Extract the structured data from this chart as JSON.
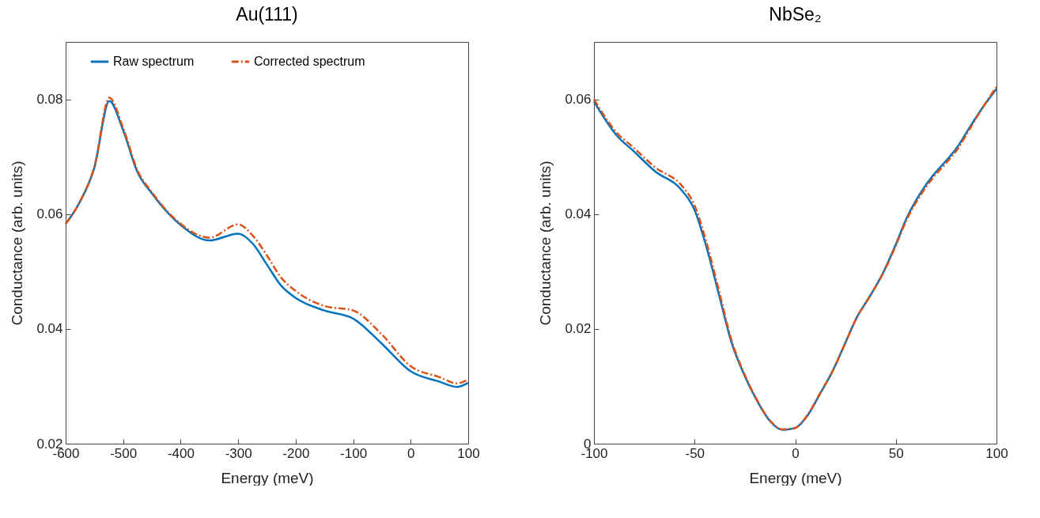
{
  "chart_data": [
    {
      "type": "line",
      "title": "Au(111)",
      "xlabel": "Energy (meV)",
      "ylabel": "Conductance (arb. units)",
      "xlim": [
        -600,
        100
      ],
      "xticks": [
        -600,
        -500,
        -400,
        -300,
        -200,
        -100,
        0,
        100
      ],
      "ylim": [
        0.02,
        0.09
      ],
      "yticks": [
        0.02,
        0.04,
        0.06,
        0.08
      ],
      "legend": "top",
      "grid": false,
      "x": [
        -600,
        -577,
        -550,
        -524,
        -500,
        -475,
        -450,
        -400,
        -350,
        -300,
        -275,
        -250,
        -225,
        -200,
        -150,
        -100,
        -50,
        0,
        50,
        80,
        100
      ],
      "series": [
        {
          "name": "Raw spectrum",
          "color": "#0072bd",
          "line_style": "solid",
          "values": [
            0.0583,
            0.0618,
            0.0681,
            0.0797,
            0.0746,
            0.0673,
            0.0636,
            0.0581,
            0.0554,
            0.0566,
            0.0549,
            0.0512,
            0.0475,
            0.0454,
            0.0432,
            0.0418,
            0.0374,
            0.0326,
            0.0308,
            0.0299,
            0.0306
          ]
        },
        {
          "name": "Corrected spectrum",
          "color": "#d95319",
          "line_style": "dashed",
          "values": [
            0.0583,
            0.0618,
            0.0683,
            0.0803,
            0.075,
            0.0676,
            0.0638,
            0.0583,
            0.0559,
            0.0582,
            0.0563,
            0.0528,
            0.0489,
            0.0466,
            0.044,
            0.0432,
            0.039,
            0.0335,
            0.0316,
            0.0305,
            0.0312
          ]
        }
      ]
    },
    {
      "type": "line",
      "title": "NbSe₂",
      "xlabel": "Energy (meV)",
      "ylabel": "Conductance (arb. units)",
      "xlim": [
        -100,
        100
      ],
      "xticks": [
        -100,
        -50,
        0,
        50,
        100
      ],
      "ylim": [
        0,
        0.07
      ],
      "yticks": [
        0,
        0.02,
        0.04,
        0.06
      ],
      "legend": false,
      "grid": false,
      "x": [
        -100,
        -88.2,
        -81,
        -69.8,
        -56,
        -50.1,
        -44.2,
        -37.7,
        -31.8,
        -25.2,
        -19.3,
        -12.7,
        -6.2,
        -0.3,
        6.3,
        12.2,
        18.8,
        24.7,
        30.6,
        37.1,
        43.7,
        49.6,
        55.5,
        62.1,
        68.6,
        74.5,
        80.4,
        87,
        93.6,
        100
      ],
      "series": [
        {
          "color": "#0072bd",
          "line_style": "solid",
          "values": [
            0.0596,
            0.0535,
            0.0512,
            0.0475,
            0.044,
            0.0408,
            0.0344,
            0.0257,
            0.0178,
            0.0119,
            0.0077,
            0.004,
            0.0024,
            0.0027,
            0.005,
            0.0086,
            0.0128,
            0.0174,
            0.022,
            0.0257,
            0.0298,
            0.0344,
            0.0394,
            0.0436,
            0.0468,
            0.0491,
            0.0516,
            0.0553,
            0.0588,
            0.0618
          ]
        },
        {
          "color": "#d95319",
          "line_style": "dashed",
          "values": [
            0.06,
            0.054,
            0.0518,
            0.0482,
            0.0448,
            0.0416,
            0.0352,
            0.0264,
            0.0182,
            0.0121,
            0.0078,
            0.0041,
            0.0025,
            0.0027,
            0.0051,
            0.0087,
            0.0128,
            0.0174,
            0.022,
            0.0257,
            0.0297,
            0.0342,
            0.0391,
            0.0432,
            0.0464,
            0.0487,
            0.0512,
            0.055,
            0.0588,
            0.0622
          ]
        }
      ]
    }
  ]
}
